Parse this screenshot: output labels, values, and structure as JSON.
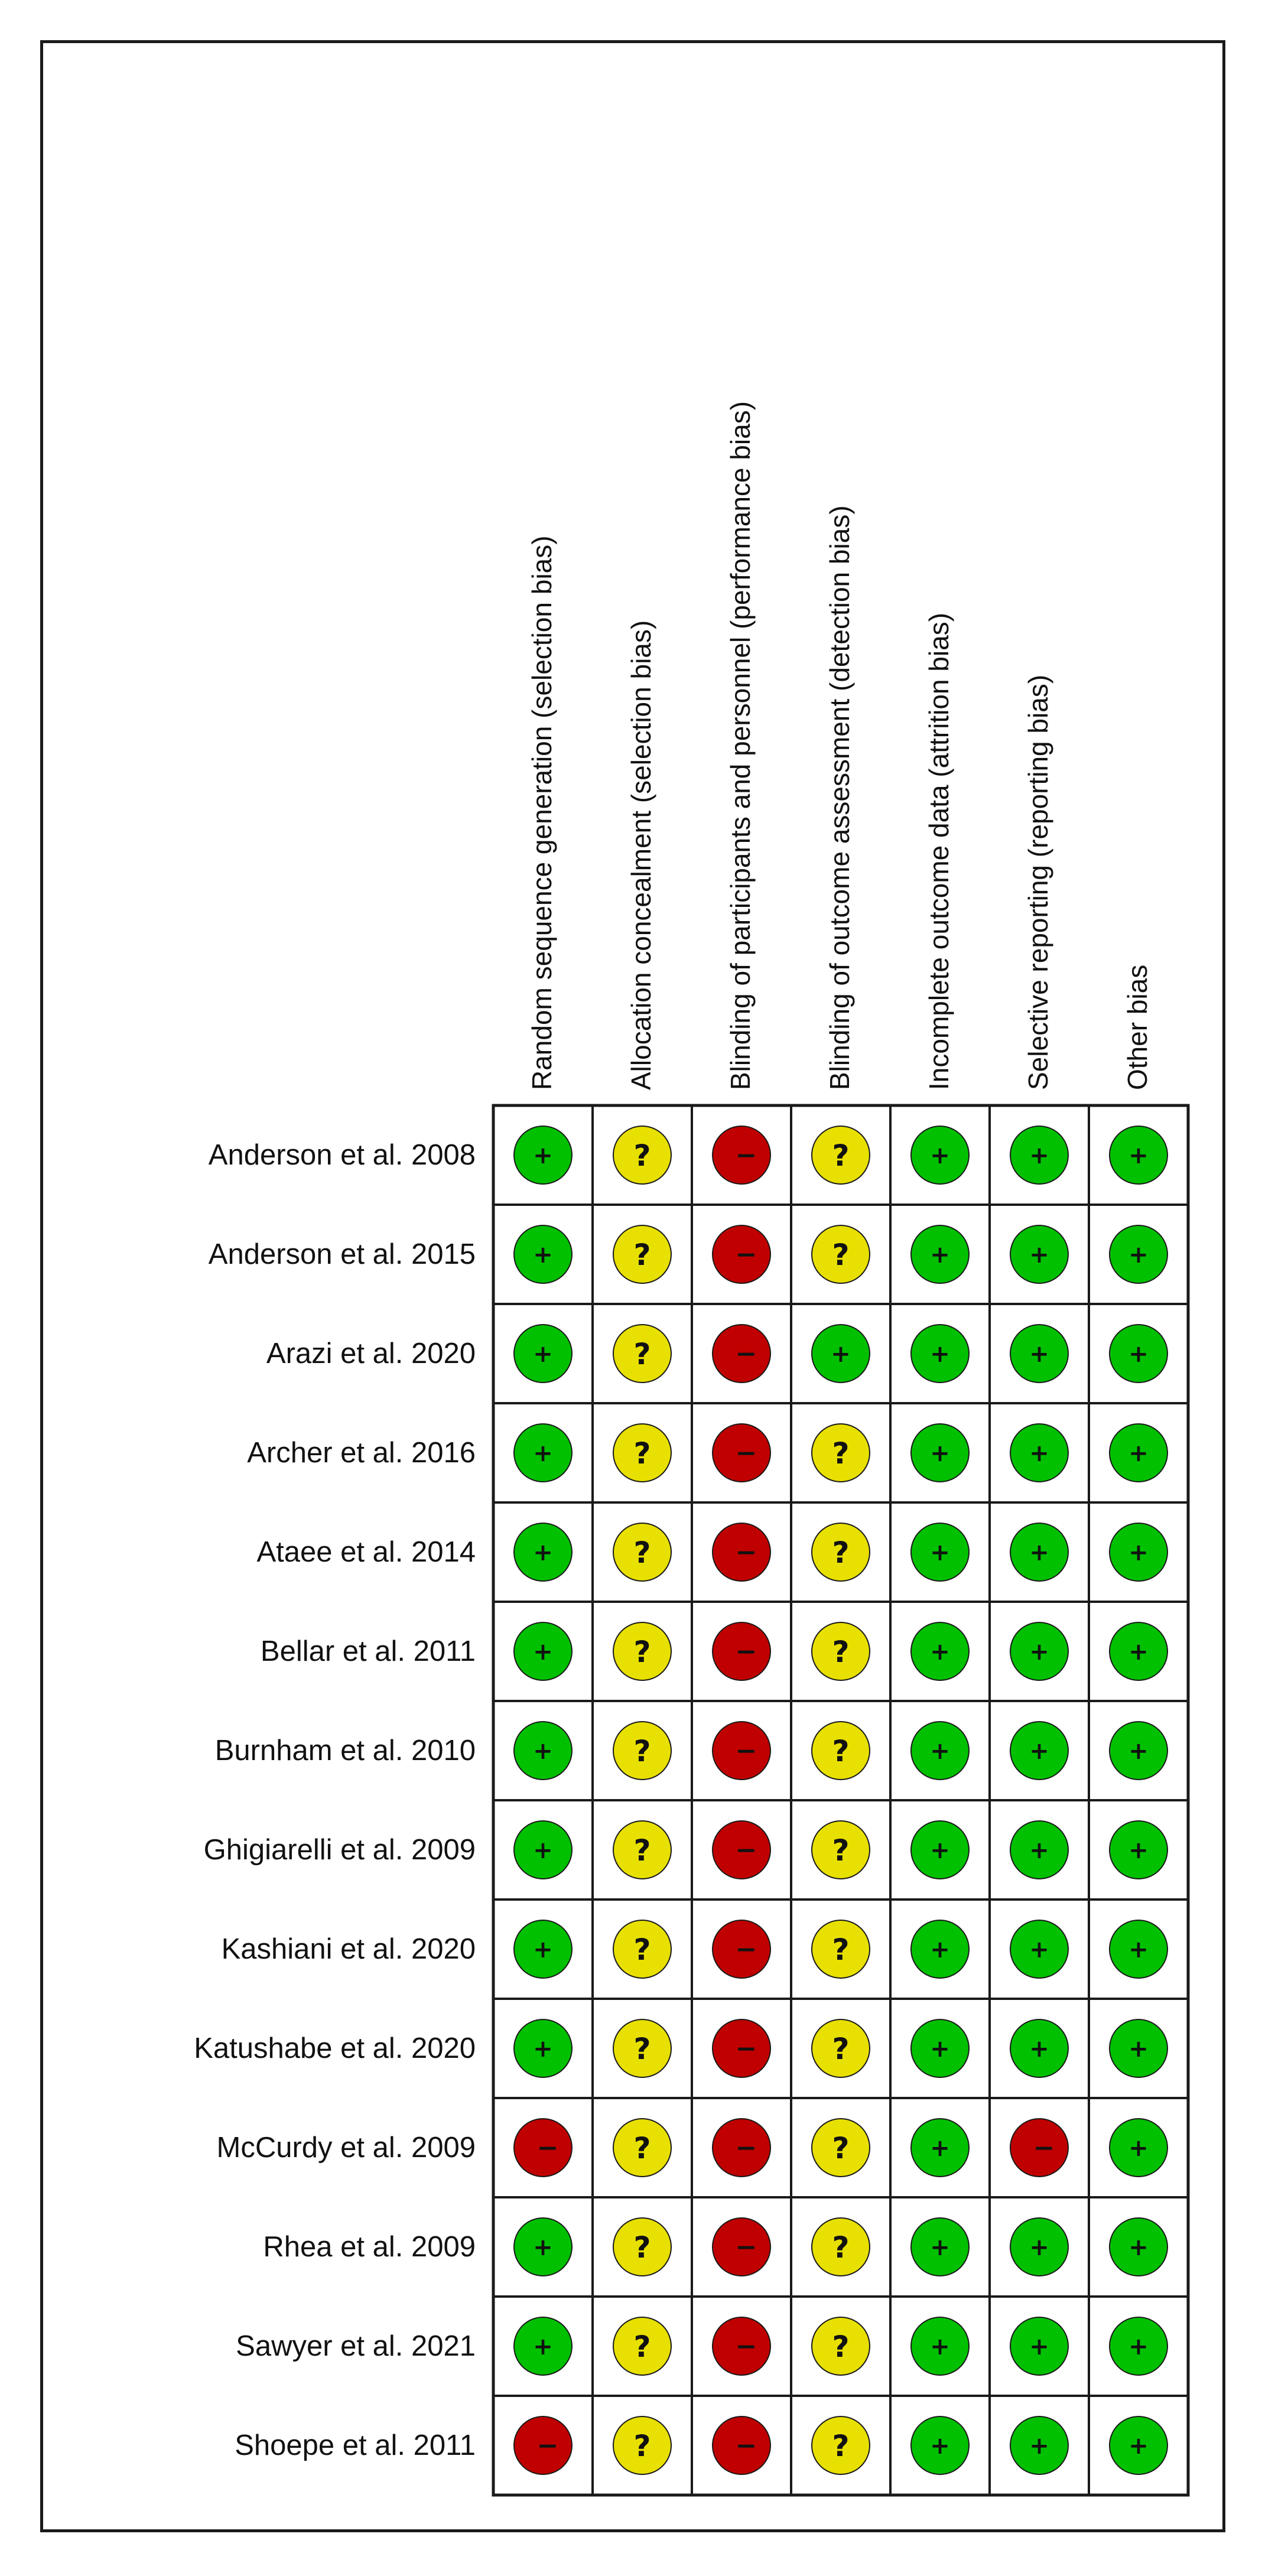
{
  "chart_data": {
    "type": "table",
    "domains": [
      "Random sequence generation (selection bias)",
      "Allocation concealment (selection bias)",
      "Blinding of participants and personnel (performance bias)",
      "Blinding of outcome assessment (detection bias)",
      "Incomplete outcome data (attrition bias)",
      "Selective reporting (reporting bias)",
      "Other bias"
    ],
    "studies": [
      {
        "name": "Anderson et al. 2008",
        "ratings": [
          "+",
          "?",
          "-",
          "?",
          "+",
          "+",
          "+"
        ]
      },
      {
        "name": "Anderson et al. 2015",
        "ratings": [
          "+",
          "?",
          "-",
          "?",
          "+",
          "+",
          "+"
        ]
      },
      {
        "name": "Arazi et al. 2020",
        "ratings": [
          "+",
          "?",
          "-",
          "+",
          "+",
          "+",
          "+"
        ]
      },
      {
        "name": "Archer et al. 2016",
        "ratings": [
          "+",
          "?",
          "-",
          "?",
          "+",
          "+",
          "+"
        ]
      },
      {
        "name": "Ataee et al. 2014",
        "ratings": [
          "+",
          "?",
          "-",
          "?",
          "+",
          "+",
          "+"
        ]
      },
      {
        "name": "Bellar et al. 2011",
        "ratings": [
          "+",
          "?",
          "-",
          "?",
          "+",
          "+",
          "+"
        ]
      },
      {
        "name": "Burnham et al. 2010",
        "ratings": [
          "+",
          "?",
          "-",
          "?",
          "+",
          "+",
          "+"
        ]
      },
      {
        "name": "Ghigiarelli et al. 2009",
        "ratings": [
          "+",
          "?",
          "-",
          "?",
          "+",
          "+",
          "+"
        ]
      },
      {
        "name": "Kashiani et al. 2020",
        "ratings": [
          "+",
          "?",
          "-",
          "?",
          "+",
          "+",
          "+"
        ]
      },
      {
        "name": "Katushabe et al. 2020",
        "ratings": [
          "+",
          "?",
          "-",
          "?",
          "+",
          "+",
          "+"
        ]
      },
      {
        "name": "McCurdy et al. 2009",
        "ratings": [
          "-",
          "?",
          "-",
          "?",
          "+",
          "-",
          "+"
        ]
      },
      {
        "name": "Rhea et al. 2009",
        "ratings": [
          "+",
          "?",
          "-",
          "?",
          "+",
          "+",
          "+"
        ]
      },
      {
        "name": "Sawyer et al. 2021",
        "ratings": [
          "+",
          "?",
          "-",
          "?",
          "+",
          "+",
          "+"
        ]
      },
      {
        "name": "Shoepe et al. 2011",
        "ratings": [
          "-",
          "?",
          "-",
          "?",
          "+",
          "+",
          "+"
        ]
      }
    ],
    "colors": {
      "+": "#00c000",
      "?": "#e8e000",
      "-": "#c00000",
      "grid": "#1a1a1a"
    }
  }
}
